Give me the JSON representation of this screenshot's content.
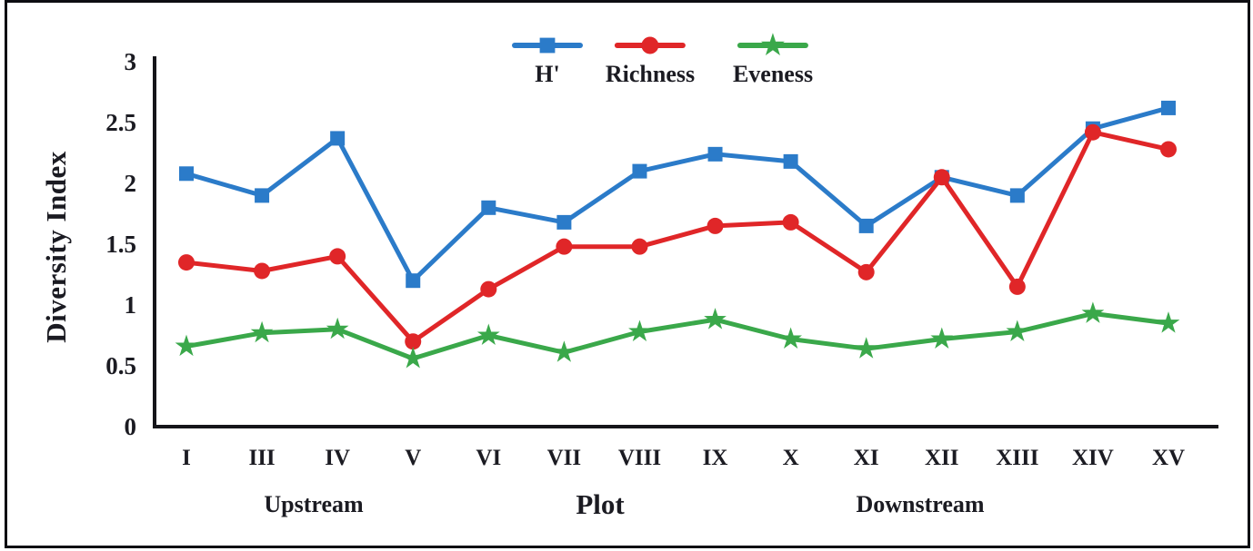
{
  "chart_data": {
    "type": "line",
    "title": "",
    "xlabel": "Plot",
    "ylabel": "Diversity Index",
    "ylim": [
      0,
      3
    ],
    "ytick_values": [
      0,
      0.5,
      1,
      1.5,
      2,
      2.5,
      3
    ],
    "ytick_labels": [
      "0",
      "0.5",
      "1",
      "1.5",
      "2",
      "2.5",
      "3"
    ],
    "categories": [
      "I",
      "III",
      "IV",
      "V",
      "VI",
      "VII",
      "VIII",
      "IX",
      "X",
      "XI",
      "XII",
      "XIII",
      "XIV",
      "XV"
    ],
    "group_labels": [
      "Upstream",
      "Downstream"
    ],
    "grid": false,
    "legend_position": "top-center",
    "series": [
      {
        "name": "H'",
        "color": "#2b7bc9",
        "marker": "square",
        "values": [
          2.08,
          1.9,
          2.37,
          1.2,
          1.8,
          1.68,
          2.1,
          2.24,
          2.18,
          1.65,
          2.05,
          1.9,
          2.45,
          2.62
        ]
      },
      {
        "name": "Richness",
        "color": "#e02628",
        "marker": "circle",
        "values": [
          1.35,
          1.28,
          1.4,
          0.7,
          1.13,
          1.48,
          1.48,
          1.65,
          1.68,
          1.27,
          2.05,
          1.15,
          2.42,
          2.28
        ]
      },
      {
        "name": "Eveness",
        "color": "#3aa84a",
        "marker": "star",
        "values": [
          0.66,
          0.77,
          0.8,
          0.56,
          0.75,
          0.61,
          0.78,
          0.88,
          0.72,
          0.64,
          0.72,
          0.78,
          0.93,
          0.85
        ]
      }
    ]
  }
}
